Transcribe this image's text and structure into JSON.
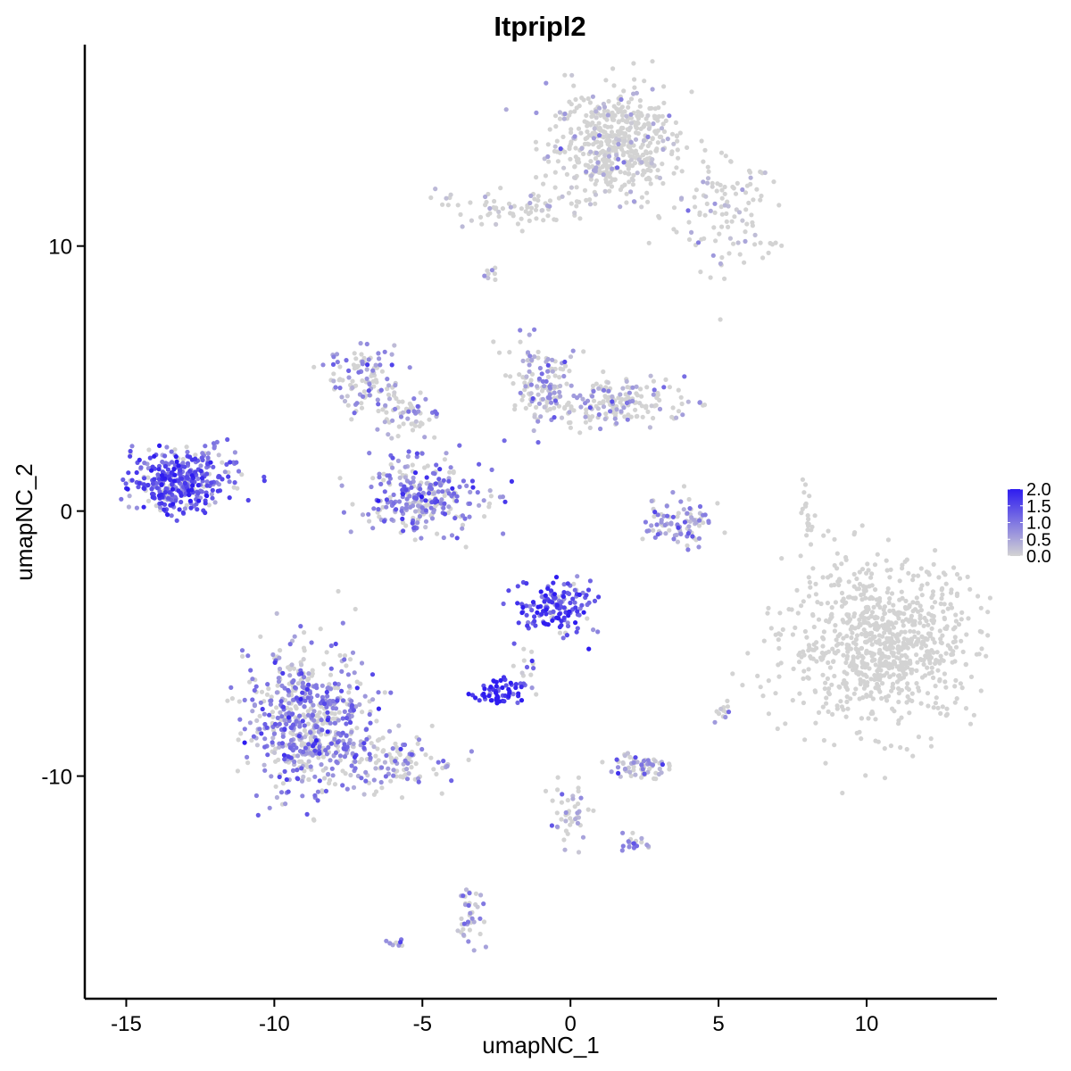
{
  "chart_data": {
    "type": "scatter",
    "title": "Itpripl2",
    "xlabel": "umapNC_1",
    "ylabel": "umapNC_2",
    "xlim": [
      -16.4,
      14.4
    ],
    "ylim": [
      -18.4,
      17.6
    ],
    "x_ticks": [
      -15,
      -10,
      -5,
      0,
      5,
      10
    ],
    "x_tick_labels": [
      "-15",
      "-10",
      "-5",
      "0",
      "5",
      "10"
    ],
    "y_ticks": [
      -10,
      0,
      10
    ],
    "y_tick_labels": [
      "-10",
      "0",
      "10"
    ],
    "grid": false,
    "point_color_low": "#d3d3d3",
    "point_color_high": "#2e1cf0",
    "legend": {
      "position": "right",
      "type": "colorbar",
      "min": 0.0,
      "max": 2.0,
      "tick_values": [
        0.0,
        0.5,
        1.0,
        1.5,
        2.0
      ],
      "tick_labels": [
        "0.0",
        "0.5",
        "1.0",
        "1.5",
        "2.0"
      ]
    },
    "clusters": [
      {
        "cx": 1.5,
        "cy": 13.9,
        "sx": 1.1,
        "sy": 1.0,
        "n": 520,
        "expr": 0.01
      },
      {
        "cx": 5.2,
        "cy": 11.1,
        "sx": 0.9,
        "sy": 1.2,
        "n": 110,
        "expr": 0.05
      },
      {
        "cx": -1.8,
        "cy": 11.4,
        "sx": 1.2,
        "sy": 0.35,
        "n": 80,
        "expr": 0.05
      },
      {
        "cx": 10.5,
        "cy": -5.0,
        "sx": 1.6,
        "sy": 1.5,
        "n": 850,
        "expr": 0.0
      },
      {
        "cx": -13.2,
        "cy": 1.1,
        "sx": 0.8,
        "sy": 0.55,
        "n": 350,
        "expr": 1.3
      },
      {
        "cx": -12.0,
        "cy": 1.8,
        "sx": 0.35,
        "sy": 0.6,
        "n": 25,
        "expr": 1.0
      },
      {
        "cx": -6.9,
        "cy": 4.9,
        "sx": 0.6,
        "sy": 0.6,
        "n": 110,
        "expr": 0.6
      },
      {
        "cx": -5.4,
        "cy": 3.7,
        "sx": 0.55,
        "sy": 0.4,
        "n": 60,
        "expr": 0.5
      },
      {
        "cx": -5.0,
        "cy": 0.6,
        "sx": 1.0,
        "sy": 0.7,
        "n": 280,
        "expr": 0.9
      },
      {
        "cx": -1.0,
        "cy": 4.8,
        "sx": 0.55,
        "sy": 0.8,
        "n": 120,
        "expr": 0.55
      },
      {
        "cx": 1.4,
        "cy": 4.1,
        "sx": 1.2,
        "sy": 0.45,
        "n": 180,
        "expr": 0.4
      },
      {
        "cx": 3.6,
        "cy": -0.4,
        "sx": 0.55,
        "sy": 0.5,
        "n": 90,
        "expr": 0.7
      },
      {
        "cx": -0.5,
        "cy": -3.6,
        "sx": 0.6,
        "sy": 0.55,
        "n": 150,
        "expr": 1.4
      },
      {
        "cx": -2.5,
        "cy": -6.9,
        "sx": 0.4,
        "sy": 0.25,
        "n": 60,
        "expr": 1.8
      },
      {
        "cx": -8.8,
        "cy": -8.0,
        "sx": 1.1,
        "sy": 1.3,
        "n": 650,
        "expr": 0.8
      },
      {
        "cx": -5.8,
        "cy": -9.5,
        "sx": 1.0,
        "sy": 0.5,
        "n": 120,
        "expr": 0.6
      },
      {
        "cx": 2.3,
        "cy": -9.6,
        "sx": 0.45,
        "sy": 0.25,
        "n": 70,
        "expr": 0.55
      },
      {
        "cx": 0.0,
        "cy": -11.3,
        "sx": 0.3,
        "sy": 0.8,
        "n": 45,
        "expr": 0.35
      },
      {
        "cx": 2.3,
        "cy": -12.6,
        "sx": 0.3,
        "sy": 0.2,
        "n": 20,
        "expr": 0.8
      },
      {
        "cx": -3.4,
        "cy": -15.2,
        "sx": 0.2,
        "sy": 0.6,
        "n": 40,
        "expr": 0.6
      },
      {
        "cx": 8.0,
        "cy": -0.3,
        "sx": 0.1,
        "sy": 0.5,
        "n": 20,
        "expr": 0.0
      },
      {
        "cx": 5.1,
        "cy": -7.5,
        "sx": 0.15,
        "sy": 0.2,
        "n": 12,
        "expr": 0.6
      },
      {
        "cx": -1.6,
        "cy": -5.8,
        "sx": 0.3,
        "sy": 0.4,
        "n": 15,
        "expr": 0.8
      },
      {
        "cx": -6.0,
        "cy": -16.3,
        "sx": 0.15,
        "sy": 0.08,
        "n": 8,
        "expr": 0.7
      },
      {
        "cx": -2.7,
        "cy": 9.0,
        "sx": 0.12,
        "sy": 0.15,
        "n": 8,
        "expr": 0.4
      }
    ]
  }
}
